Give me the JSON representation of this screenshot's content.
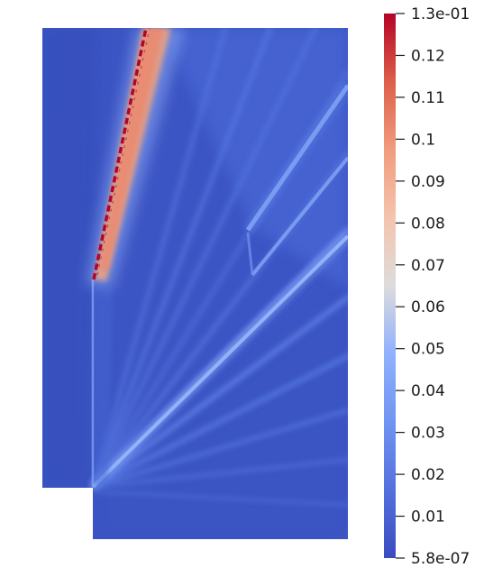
{
  "chart_data": {
    "type": "heatmap",
    "colormap": "Cool to Warm",
    "colors": {
      "low": "#3b4cc0",
      "mid": "#dddddd",
      "high": "#b40426"
    },
    "range": [
      5.8e-07,
      0.13
    ],
    "colorbar": {
      "placement": "right",
      "ticks": [
        {
          "value": 0.13,
          "label": "1.3e-01"
        },
        {
          "value": 0.12,
          "label": "0.12"
        },
        {
          "value": 0.11,
          "label": "0.11"
        },
        {
          "value": 0.1,
          "label": "0.1"
        },
        {
          "value": 0.09,
          "label": "0.09"
        },
        {
          "value": 0.08,
          "label": "0.08"
        },
        {
          "value": 0.07,
          "label": "0.07"
        },
        {
          "value": 0.06,
          "label": "0.06"
        },
        {
          "value": 0.05,
          "label": "0.05"
        },
        {
          "value": 0.04,
          "label": "0.04"
        },
        {
          "value": 0.03,
          "label": "0.03"
        },
        {
          "value": 0.02,
          "label": "0.02"
        },
        {
          "value": 0.01,
          "label": "0.01"
        },
        {
          "value": 5.8e-07,
          "label": "5.8e-07"
        }
      ]
    }
  }
}
